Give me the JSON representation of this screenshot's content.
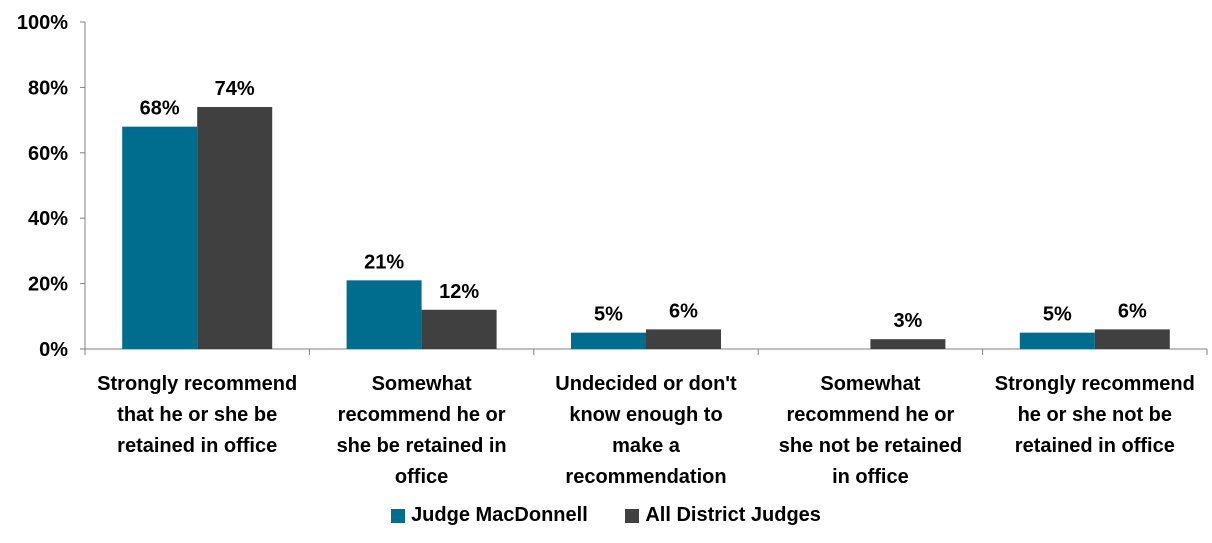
{
  "chart_data": {
    "type": "bar",
    "categories": [
      [
        "Strongly recommend",
        "that he or she be",
        "retained in office"
      ],
      [
        "Somewhat",
        "recommend he or",
        "she be retained in",
        "office"
      ],
      [
        "Undecided or don't",
        "know enough to",
        "make a",
        "recommendation"
      ],
      [
        "Somewhat",
        "recommend he or",
        "she not be retained",
        "in office"
      ],
      [
        "Strongly recommend",
        "he or she not be",
        "retained in office"
      ]
    ],
    "series": [
      {
        "name": "Judge MacDonnell",
        "color": "#006D8F",
        "values": [
          68,
          21,
          5,
          null,
          5
        ],
        "labels": [
          "68%",
          "21%",
          "5%",
          "",
          "5%"
        ]
      },
      {
        "name": "All District Judges",
        "color": "#404040",
        "values": [
          74,
          12,
          6,
          3,
          6
        ],
        "labels": [
          "74%",
          "12%",
          "6%",
          "3%",
          "6%"
        ]
      }
    ],
    "yticks": [
      "0%",
      "20%",
      "40%",
      "60%",
      "80%",
      "100%"
    ],
    "ylim": [
      0,
      100
    ],
    "grid": false,
    "legend_position": "bottom"
  }
}
